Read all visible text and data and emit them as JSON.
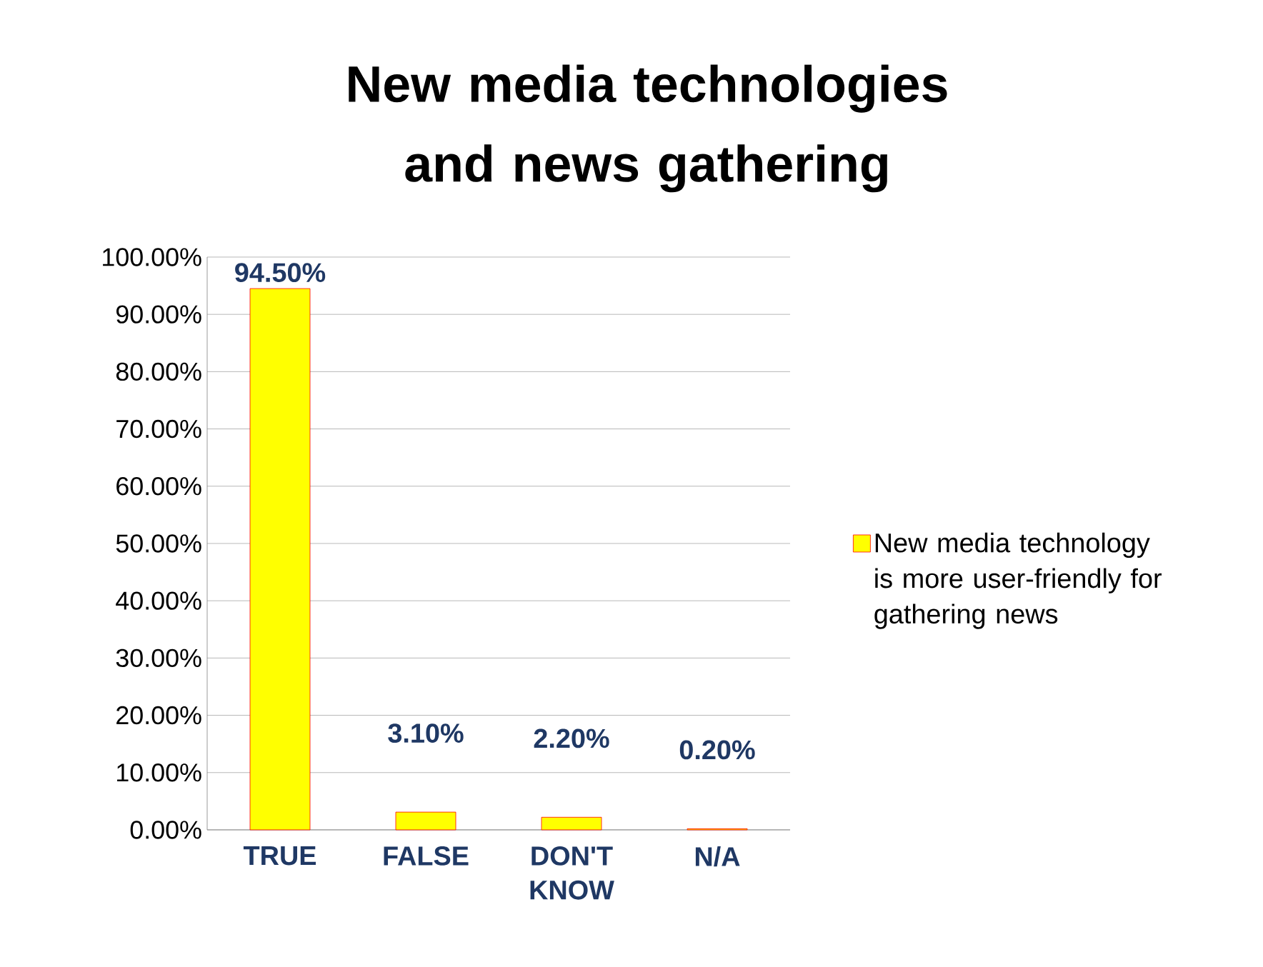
{
  "chart_data": {
    "type": "bar",
    "title": "New media technologies and news gathering",
    "categories": [
      "TRUE",
      "FALSE",
      "DON'T KNOW",
      "N/A"
    ],
    "series": [
      {
        "name": "New media technology is more user-friendly for gathering news",
        "color": "#ffff00",
        "values": [
          94.5,
          3.1,
          2.2,
          0.2
        ],
        "value_labels": [
          "94.50%",
          "3.10%",
          "2.20%",
          "0.20%"
        ]
      }
    ],
    "ylim": [
      0,
      100
    ],
    "yticks": [
      {
        "value": 0,
        "label": "0.00%"
      },
      {
        "value": 10,
        "label": "10.00%"
      },
      {
        "value": 20,
        "label": "20.00%"
      },
      {
        "value": 30,
        "label": "30.00%"
      },
      {
        "value": 40,
        "label": "40.00%"
      },
      {
        "value": 50,
        "label": "50.00%"
      },
      {
        "value": 60,
        "label": "60.00%"
      },
      {
        "value": 70,
        "label": "70.00%"
      },
      {
        "value": 80,
        "label": "80.00%"
      },
      {
        "value": 90,
        "label": "90.00%"
      },
      {
        "value": 100,
        "label": "100.00%"
      }
    ],
    "grid": "y",
    "legend": "right"
  }
}
